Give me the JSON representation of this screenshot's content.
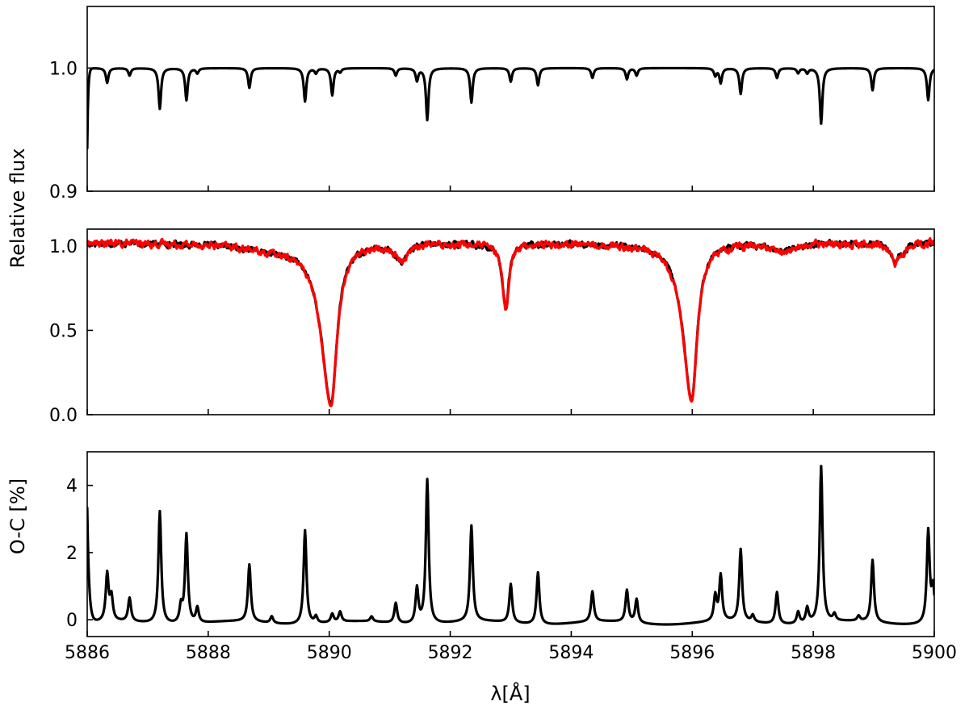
{
  "chart_data": [
    {
      "type": "line",
      "panel": "top",
      "xlim": [
        5886,
        5900
      ],
      "ylim": [
        0.9,
        1.05
      ],
      "yticks": [
        0.9,
        1.0
      ],
      "ytick_labels": [
        "0.9",
        "1.0"
      ],
      "xticks": [
        5886,
        5888,
        5890,
        5892,
        5894,
        5896,
        5898,
        5900
      ],
      "x_tick_labels_shown": false,
      "tick_direction": "in",
      "ylabel": "",
      "grid": false,
      "series": [
        {
          "color": "#000000",
          "continuum": 1.0,
          "start": {
            "x": 5886.0,
            "y": 0.935
          },
          "lines": [
            [
              5886.33,
              0.012
            ],
            [
              5886.7,
              0.006
            ],
            [
              5887.2,
              0.033
            ],
            [
              5887.64,
              0.026
            ],
            [
              5887.82,
              0.004
            ],
            [
              5888.68,
              0.016
            ],
            [
              5889.6,
              0.027
            ],
            [
              5889.78,
              0.004
            ],
            [
              5890.05,
              0.022
            ],
            [
              5890.18,
              0.003
            ],
            [
              5891.1,
              0.006
            ],
            [
              5891.45,
              0.01
            ],
            [
              5891.62,
              0.042
            ],
            [
              5892.35,
              0.028
            ],
            [
              5893.0,
              0.011
            ],
            [
              5893.45,
              0.014
            ],
            [
              5894.35,
              0.008
            ],
            [
              5894.92,
              0.009
            ],
            [
              5895.08,
              0.006
            ],
            [
              5896.38,
              0.006
            ],
            [
              5896.47,
              0.012
            ],
            [
              5896.8,
              0.021
            ],
            [
              5897.4,
              0.008
            ],
            [
              5897.75,
              0.004
            ],
            [
              5897.9,
              0.004
            ],
            [
              5898.13,
              0.045
            ],
            [
              5898.98,
              0.018
            ],
            [
              5899.9,
              0.026
            ]
          ]
        }
      ]
    },
    {
      "type": "line",
      "panel": "middle",
      "xlim": [
        5886,
        5900
      ],
      "ylim": [
        0.0,
        1.1
      ],
      "yticks": [
        0.0,
        0.5,
        1.0
      ],
      "ytick_labels": [
        "0.0",
        "0.5",
        "1.0"
      ],
      "xticks": [
        5886,
        5888,
        5890,
        5892,
        5894,
        5896,
        5898,
        5900
      ],
      "x_tick_labels_shown": false,
      "tick_direction": "in",
      "ylabel": "Relative flux",
      "grid": false,
      "series": [
        {
          "color": "#000000",
          "continuum": 1.02,
          "noise": 0.018,
          "lines": [
            [
              5890.03,
              0.95,
              0.12,
              1.0
            ],
            [
              5895.99,
              0.93,
              0.11,
              0.9
            ],
            [
              5892.92,
              0.38,
              0.06,
              0.3
            ],
            [
              5891.2,
              0.1,
              0.1,
              0.6
            ],
            [
              5889.0,
              0.03,
              0.5,
              0.0
            ],
            [
              5897.5,
              0.04,
              0.25,
              0.0
            ],
            [
              5899.35,
              0.11,
              0.08,
              0.0
            ],
            [
              5899.5,
              0.04,
              0.06,
              0.0
            ]
          ]
        },
        {
          "color": "#ff0000",
          "continuum": 1.02,
          "noise": 0.022,
          "lines": [
            [
              5890.03,
              0.96,
              0.12,
              1.0
            ],
            [
              5895.99,
              0.94,
              0.11,
              0.9
            ],
            [
              5892.92,
              0.39,
              0.06,
              0.3
            ],
            [
              5891.2,
              0.1,
              0.1,
              0.6
            ],
            [
              5889.0,
              0.03,
              0.5,
              0.0
            ],
            [
              5897.5,
              0.05,
              0.25,
              0.0
            ],
            [
              5899.35,
              0.12,
              0.08,
              0.0
            ],
            [
              5899.5,
              0.04,
              0.06,
              0.0
            ]
          ]
        }
      ]
    },
    {
      "type": "line",
      "panel": "bottom",
      "xlim": [
        5886,
        5900
      ],
      "ylim": [
        -0.5,
        5.0
      ],
      "yticks": [
        0,
        2,
        4
      ],
      "ytick_labels": [
        "0",
        "2",
        "4"
      ],
      "xticks": [
        5886,
        5888,
        5890,
        5892,
        5894,
        5896,
        5898,
        5900
      ],
      "xtick_labels": [
        "5886",
        "5888",
        "5890",
        "5892",
        "5894",
        "5896",
        "5898",
        "5900"
      ],
      "x_tick_labels_shown": true,
      "tick_direction": "in",
      "xlabel": "λ[Å]",
      "ylabel": "O-C [%]",
      "grid": false,
      "series": [
        {
          "color": "#000000",
          "baseline": -0.1,
          "start": {
            "x": 5886.0,
            "y": 3.3
          },
          "peaks": [
            [
              5886.33,
              1.4
            ],
            [
              5886.4,
              0.7
            ],
            [
              5886.7,
              0.7
            ],
            [
              5887.2,
              3.35
            ],
            [
              5887.55,
              0.5
            ],
            [
              5887.64,
              2.65
            ],
            [
              5887.82,
              0.45
            ],
            [
              5888.68,
              1.7
            ],
            [
              5889.05,
              0.2
            ],
            [
              5889.6,
              2.8
            ],
            [
              5889.78,
              0.2
            ],
            [
              5890.05,
              0.25
            ],
            [
              5890.18,
              0.3
            ],
            [
              5890.7,
              0.15
            ],
            [
              5891.1,
              0.6
            ],
            [
              5891.45,
              1.05
            ],
            [
              5891.62,
              4.3
            ],
            [
              5892.35,
              2.85
            ],
            [
              5893.0,
              1.15
            ],
            [
              5893.45,
              1.55
            ],
            [
              5894.35,
              0.9
            ],
            [
              5894.92,
              0.95
            ],
            [
              5895.08,
              0.7
            ],
            [
              5896.38,
              0.75
            ],
            [
              5896.47,
              1.35
            ],
            [
              5896.8,
              2.15
            ],
            [
              5897.0,
              0.2
            ],
            [
              5897.4,
              0.95
            ],
            [
              5897.75,
              0.35
            ],
            [
              5897.9,
              0.45
            ],
            [
              5898.13,
              4.65
            ],
            [
              5898.35,
              0.2
            ],
            [
              5898.98,
              1.85
            ],
            [
              5898.75,
              0.15
            ],
            [
              5899.9,
              2.75
            ],
            [
              5899.98,
              1.0
            ]
          ]
        }
      ]
    }
  ]
}
